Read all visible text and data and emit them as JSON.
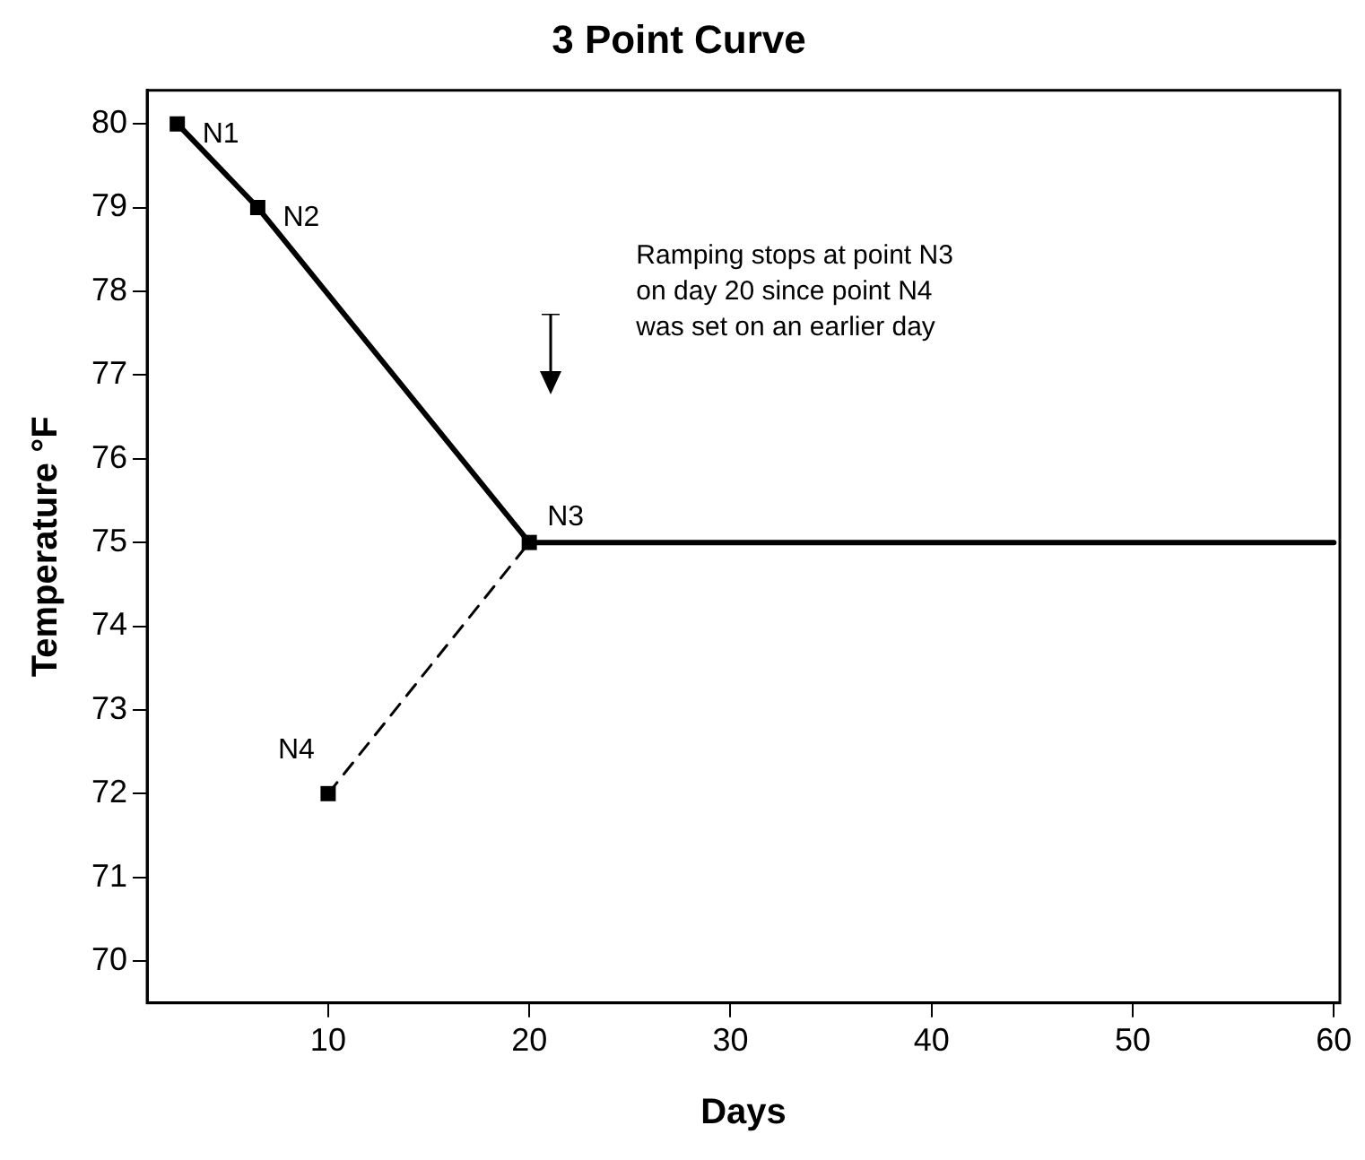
{
  "chart_data": {
    "type": "line",
    "title": "3 Point Curve",
    "xlabel": "Days",
    "ylabel": "Temperature °F",
    "xlim": [
      1,
      60.3
    ],
    "xticks": [
      10,
      20,
      30,
      40,
      50,
      60
    ],
    "ylim": [
      69.5,
      80.4
    ],
    "yticks": [
      70,
      71,
      72,
      73,
      74,
      75,
      76,
      77,
      78,
      79,
      80
    ],
    "grid": false,
    "legend": false,
    "series": [
      {
        "type": "line",
        "x": [
          2.5,
          6.5,
          20,
          60
        ],
        "values": [
          80,
          79,
          75,
          75
        ],
        "color": "#000000",
        "line_style": "solid",
        "marker": "none"
      },
      {
        "type": "line",
        "x": [
          10,
          20
        ],
        "values": [
          72,
          75
        ],
        "color": "#000000",
        "line_style": "dashed",
        "marker": "none"
      },
      {
        "type": "scatter",
        "x": [
          2.5,
          6.5,
          20,
          10
        ],
        "values": [
          80,
          79,
          75,
          72
        ],
        "color": "#000000",
        "marker": "square"
      }
    ],
    "annotations": [
      {
        "text": "N1",
        "x": 2.5,
        "y": 80
      },
      {
        "text": "N2",
        "x": 6.5,
        "y": 79
      },
      {
        "text": "N3",
        "x": 20,
        "y": 75
      },
      {
        "text": "N4",
        "x": 10,
        "y": 72
      },
      "Ramping stops at point N3\non day 20 since point N4\nwas set on an earlier day"
    ]
  }
}
